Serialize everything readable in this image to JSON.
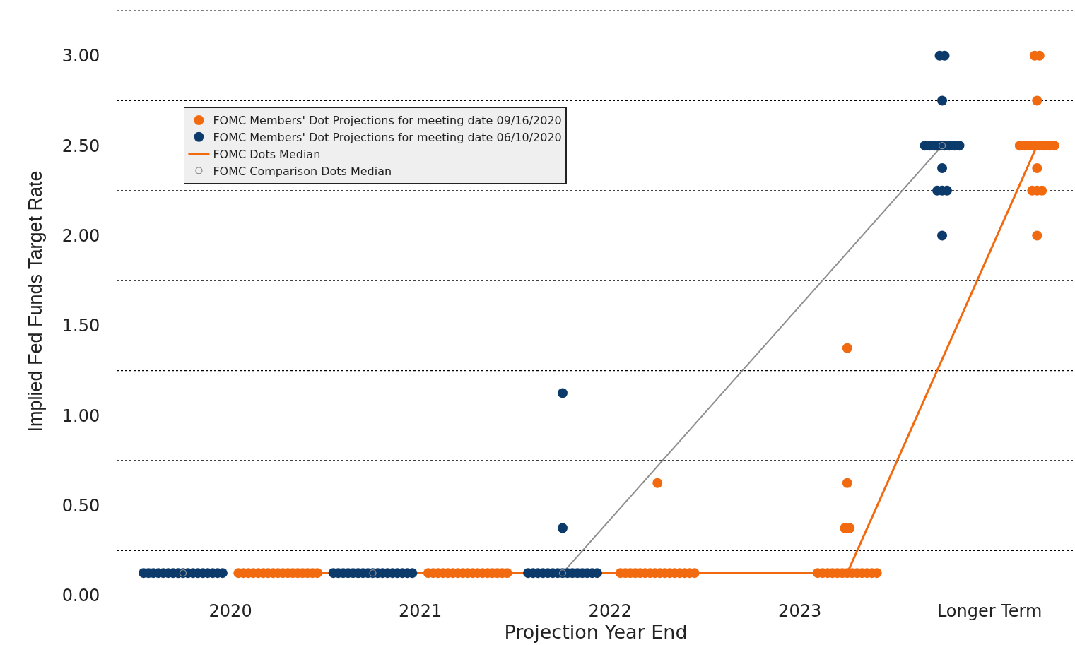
{
  "chart_data": {
    "type": "scatter",
    "xlabel": "Projection Year End",
    "ylabel": "Implied Fed Funds Target Rate",
    "xlim": [
      2019.4,
      2024.45
    ],
    "xticks": [
      2020,
      2021,
      2022,
      2023,
      {
        "value": 2024,
        "label": "Longer Term"
      }
    ],
    "ylim": [
      0,
      3.27
    ],
    "yticks": [
      {
        "value": 0,
        "label": "0.00"
      },
      {
        "value": 0.5,
        "label": "0.50"
      },
      {
        "value": 1,
        "label": "1.00"
      },
      {
        "value": 1.5,
        "label": "1.50"
      },
      {
        "value": 2,
        "label": "2.00"
      },
      {
        "value": 2.5,
        "label": "2.50"
      },
      {
        "value": 3,
        "label": "3.00"
      }
    ],
    "grid": false,
    "legend": "top left",
    "ref_lines": [
      {
        "axis": "y",
        "value": 0.25,
        "line_style": "dotted"
      },
      {
        "axis": "y",
        "value": 0.75,
        "line_style": "dotted"
      },
      {
        "axis": "y",
        "value": 1.25,
        "line_style": "dotted"
      },
      {
        "axis": "y",
        "value": 1.75,
        "line_style": "dotted"
      },
      {
        "axis": "y",
        "value": 2.25,
        "line_style": "dotted"
      },
      {
        "axis": "y",
        "value": 2.75,
        "line_style": "dotted"
      },
      {
        "axis": "y",
        "value": 3.25,
        "line_style": "dotted"
      }
    ],
    "series": [
      {
        "name": "FOMC Members' Dot Projections for meeting date 09/16/2020",
        "color": "#f26a10",
        "marker": "circle",
        "x": [
          2020.042,
          2020.068,
          2020.094,
          2020.12,
          2020.146,
          2020.172,
          2020.198,
          2020.224,
          2020.25,
          2020.276,
          2020.302,
          2020.328,
          2020.354,
          2020.38,
          2020.406,
          2020.432,
          2020.458,
          2021.042,
          2021.068,
          2021.094,
          2021.12,
          2021.146,
          2021.172,
          2021.198,
          2021.224,
          2021.25,
          2021.276,
          2021.302,
          2021.328,
          2021.354,
          2021.38,
          2021.406,
          2021.432,
          2021.458,
          2022.055,
          2022.081,
          2022.107,
          2022.133,
          2022.159,
          2022.185,
          2022.211,
          2022.237,
          2022.263,
          2022.289,
          2022.315,
          2022.341,
          2022.367,
          2022.393,
          2022.419,
          2022.445,
          2022.25,
          2023.094,
          2023.12,
          2023.146,
          2023.172,
          2023.198,
          2023.224,
          2023.25,
          2023.276,
          2023.302,
          2023.328,
          2023.354,
          2023.38,
          2023.406,
          2023.237,
          2023.263,
          2023.25,
          2023.25,
          2024.237,
          2024.263,
          2024.25,
          2024.159,
          2024.185,
          2024.211,
          2024.237,
          2024.263,
          2024.289,
          2024.315,
          2024.341,
          2024.25,
          2024.224,
          2024.25,
          2024.276,
          2024.25
        ],
        "values": [
          0.125,
          0.125,
          0.125,
          0.125,
          0.125,
          0.125,
          0.125,
          0.125,
          0.125,
          0.125,
          0.125,
          0.125,
          0.125,
          0.125,
          0.125,
          0.125,
          0.125,
          0.125,
          0.125,
          0.125,
          0.125,
          0.125,
          0.125,
          0.125,
          0.125,
          0.125,
          0.125,
          0.125,
          0.125,
          0.125,
          0.125,
          0.125,
          0.125,
          0.125,
          0.125,
          0.125,
          0.125,
          0.125,
          0.125,
          0.125,
          0.125,
          0.125,
          0.125,
          0.125,
          0.125,
          0.125,
          0.125,
          0.125,
          0.125,
          0.125,
          0.625,
          0.125,
          0.125,
          0.125,
          0.125,
          0.125,
          0.125,
          0.125,
          0.125,
          0.125,
          0.125,
          0.125,
          0.125,
          0.125,
          0.375,
          0.375,
          0.625,
          1.375,
          3.0,
          3.0,
          2.75,
          2.5,
          2.5,
          2.5,
          2.5,
          2.5,
          2.5,
          2.5,
          2.5,
          2.375,
          2.25,
          2.25,
          2.25,
          2.0
        ]
      },
      {
        "name": "FOMC Members' Dot Projections for meeting date 06/10/2020",
        "color": "#0b3a6b",
        "marker": "circle",
        "x": [
          2019.542,
          2019.568,
          2019.594,
          2019.62,
          2019.646,
          2019.672,
          2019.698,
          2019.724,
          2019.75,
          2019.776,
          2019.802,
          2019.828,
          2019.854,
          2019.88,
          2019.906,
          2019.932,
          2019.958,
          2020.542,
          2020.568,
          2020.594,
          2020.62,
          2020.646,
          2020.672,
          2020.698,
          2020.724,
          2020.75,
          2020.776,
          2020.802,
          2020.828,
          2020.854,
          2020.88,
          2020.906,
          2020.932,
          2020.958,
          2021.568,
          2021.594,
          2021.62,
          2021.646,
          2021.672,
          2021.698,
          2021.724,
          2021.75,
          2021.776,
          2021.802,
          2021.828,
          2021.854,
          2021.88,
          2021.906,
          2021.932,
          2021.75,
          2021.75,
          2023.737,
          2023.763,
          2023.75,
          2023.659,
          2023.685,
          2023.711,
          2023.737,
          2023.763,
          2023.789,
          2023.815,
          2023.841,
          2023.75,
          2023.724,
          2023.75,
          2023.776,
          2023.75
        ],
        "values": [
          0.125,
          0.125,
          0.125,
          0.125,
          0.125,
          0.125,
          0.125,
          0.125,
          0.125,
          0.125,
          0.125,
          0.125,
          0.125,
          0.125,
          0.125,
          0.125,
          0.125,
          0.125,
          0.125,
          0.125,
          0.125,
          0.125,
          0.125,
          0.125,
          0.125,
          0.125,
          0.125,
          0.125,
          0.125,
          0.125,
          0.125,
          0.125,
          0.125,
          0.125,
          0.125,
          0.125,
          0.125,
          0.125,
          0.125,
          0.125,
          0.125,
          0.125,
          0.125,
          0.125,
          0.125,
          0.125,
          0.125,
          0.125,
          0.125,
          0.375,
          1.125,
          3.0,
          3.0,
          2.75,
          2.5,
          2.5,
          2.5,
          2.5,
          2.5,
          2.5,
          2.5,
          2.5,
          2.375,
          2.25,
          2.25,
          2.25,
          2.0
        ]
      },
      {
        "type": "line",
        "name": "FOMC Dots Median",
        "color": "#f26a10",
        "marker": "none",
        "x": [
          2020.25,
          2021.25,
          2022.25,
          2023.25,
          2024.25
        ],
        "values": [
          0.125,
          0.125,
          0.125,
          0.125,
          2.5
        ]
      },
      {
        "name": "FOMC Comparison Dots Median",
        "color": "#8e8e8e",
        "marker": "circle",
        "x": [
          2019.75,
          2020.75,
          2021.75,
          2023.75
        ],
        "values": [
          0.125,
          0.125,
          0.125,
          2.5
        ]
      },
      {
        "type": "line",
        "color": "#8e8e8e",
        "marker": "none",
        "x": [
          2021.75,
          2023.75
        ],
        "values": [
          0.125,
          2.5
        ]
      }
    ]
  }
}
